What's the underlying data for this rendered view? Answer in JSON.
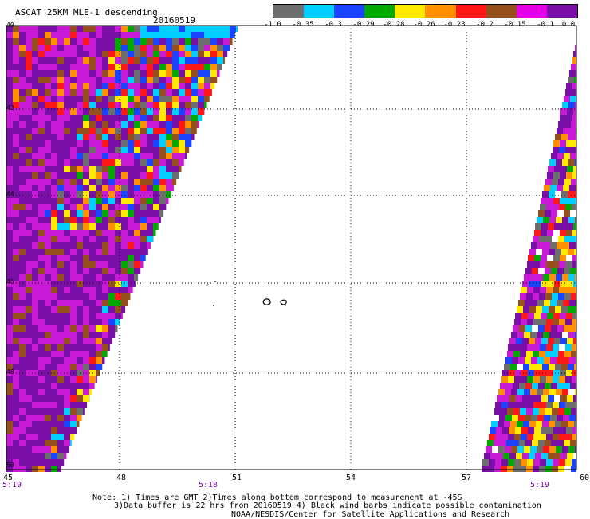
{
  "header": {
    "title": "ASCAT 25KM MLE-1 descending",
    "date": "20160519"
  },
  "colorbar": {
    "colors": [
      "#6e6e6e",
      "#00cfff",
      "#1a44ff",
      "#00a800",
      "#ffea00",
      "#ff9000",
      "#ff1818",
      "#96501e",
      "#e600e6",
      "#7a0fa8"
    ],
    "tick_labels": [
      "-1.0",
      "-0.35",
      "-0.3",
      "-0.29",
      "-0.28",
      "-0.26",
      "-0.23",
      "-0.2",
      "-0.15",
      "-0.1",
      "0.0"
    ]
  },
  "map": {
    "lat_labels": [
      "40",
      "42",
      "44",
      "46",
      "48",
      "50"
    ],
    "lon_labels": [
      "45",
      "48",
      "51",
      "54",
      "57",
      "60"
    ],
    "time_labels": [
      "5:19",
      "5:18",
      "5:19"
    ],
    "colors": {
      "purple": "#7a0fa8",
      "magenta": "#c81ad6",
      "brown": "#96501e",
      "red": "#ff1818",
      "orange": "#ff9000",
      "yellow": "#ffea00",
      "green": "#00a800",
      "blue": "#1a44ff",
      "cyan": "#00cfff",
      "gray": "#6e6e6e",
      "white": "#ffffff"
    }
  },
  "footer": {
    "note1": "Note: 1) Times are GMT 2)Times along bottom correspond to measurement at -45S",
    "note2": "3)Data buffer is 22 hrs from 20160519 4) Black wind barbs indicate possible contamination",
    "credit": "NOAA/NESDIS/Center for Satellite Applications and Research"
  }
}
